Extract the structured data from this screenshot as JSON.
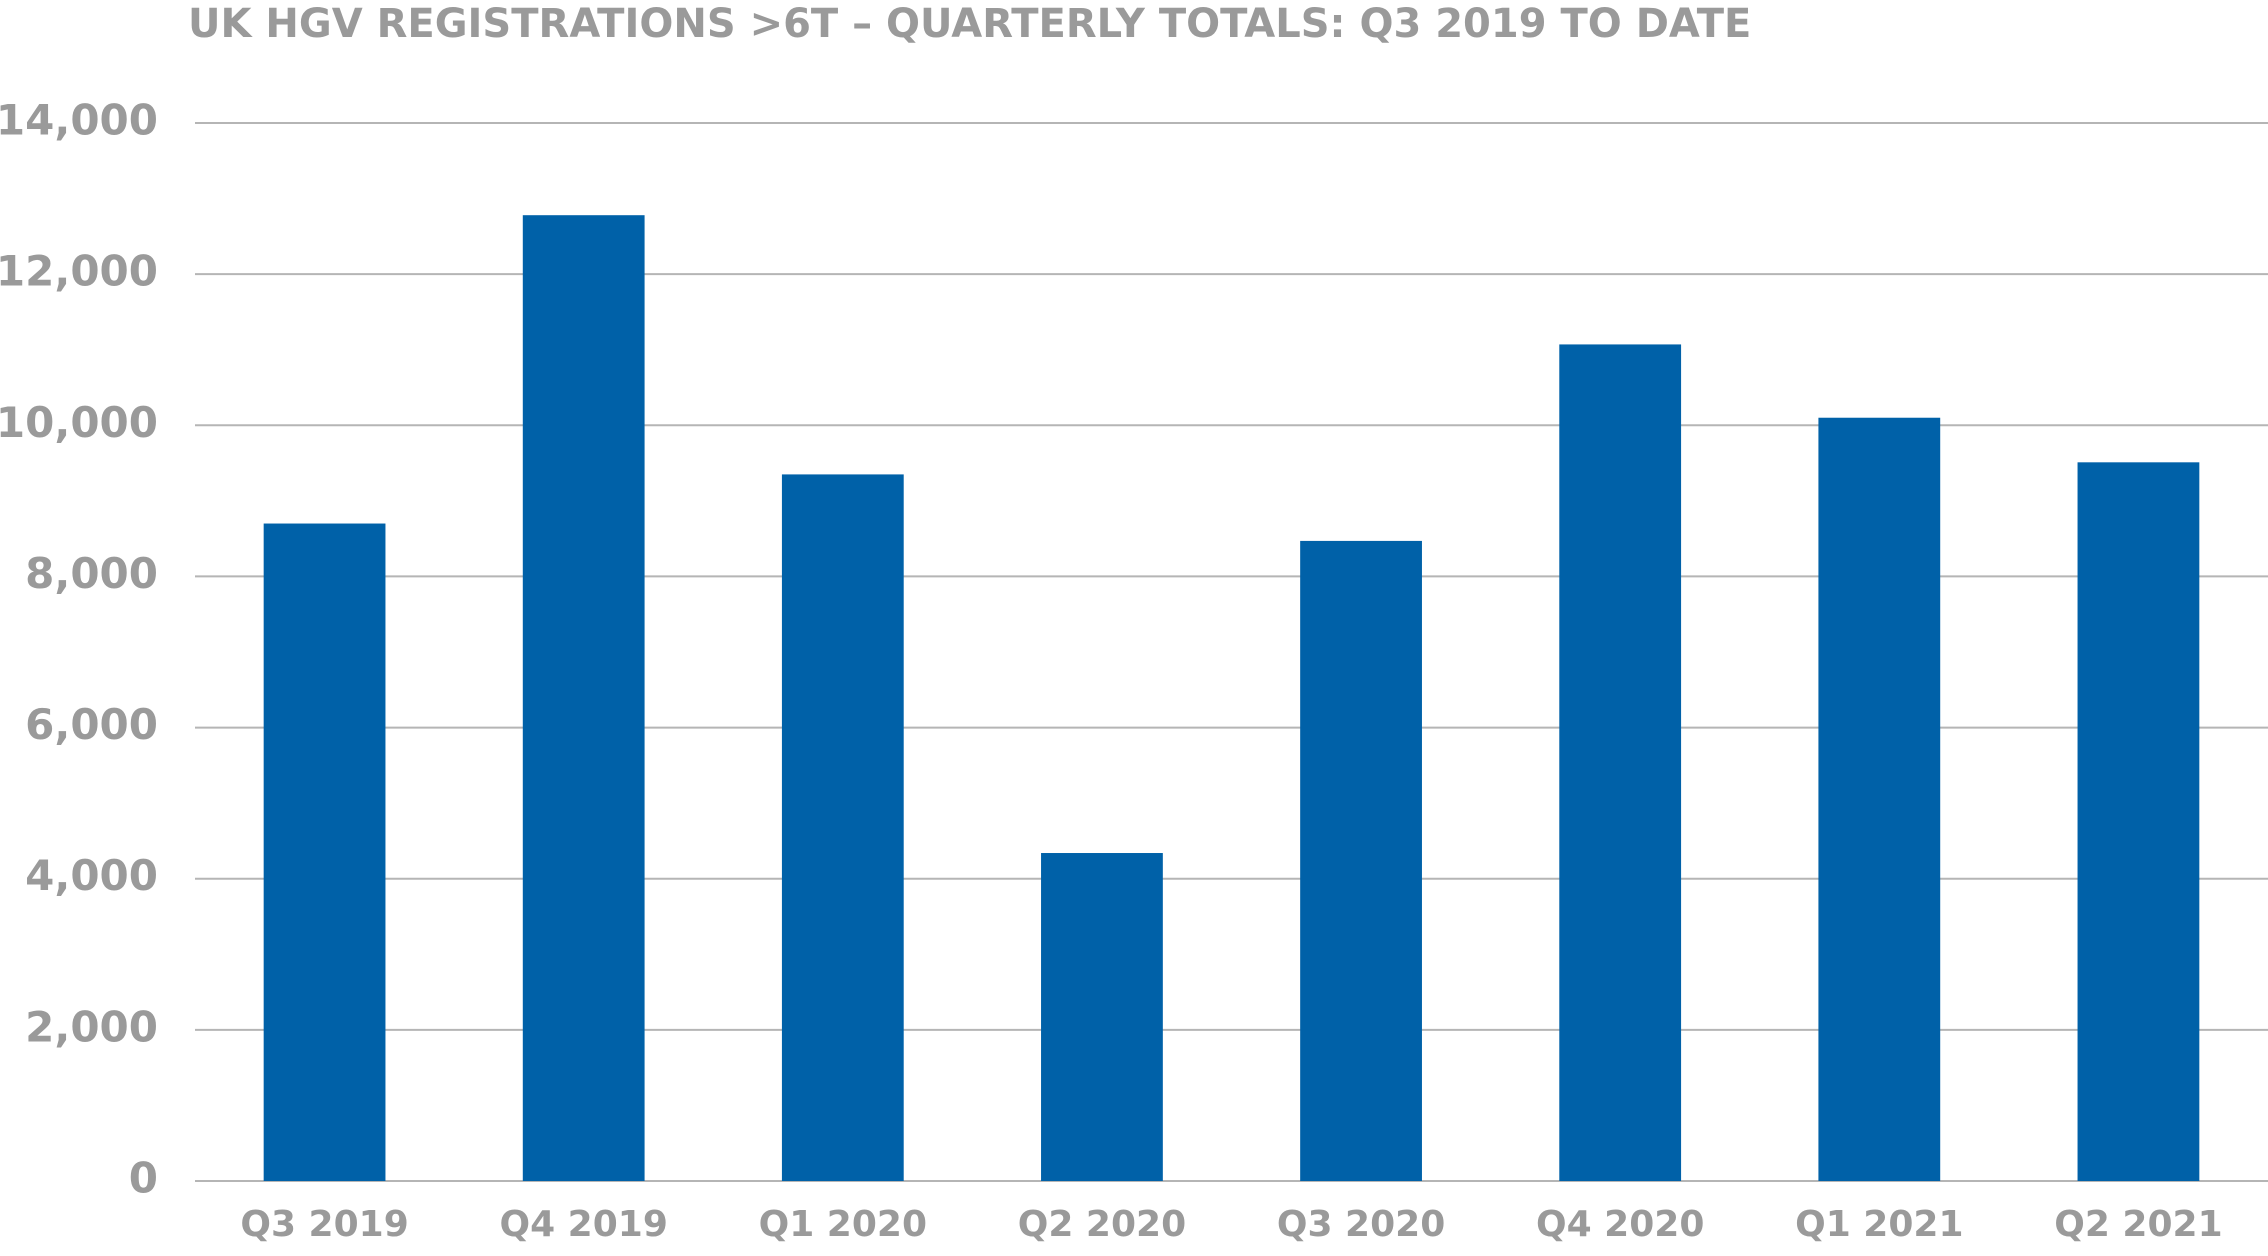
{
  "chart_data": {
    "type": "bar",
    "title": "UK HGV REGISTRATIONS >6T – QUARTERLY TOTALS: Q3 2019 TO DATE",
    "categories": [
      "Q3 2019",
      "Q4 2019",
      "Q1 2020",
      "Q2 2020",
      "Q3 2020",
      "Q4 2020",
      "Q1 2021",
      "Q2 2021"
    ],
    "values": [
      8700,
      12780,
      9350,
      4340,
      8470,
      11070,
      10100,
      9510
    ],
    "color": "#0061a8",
    "ylim": [
      0,
      14000
    ],
    "yticks": [
      0,
      {
        "value": 2000,
        "label": "2,000"
      },
      {
        "value": 4000,
        "label": "4,000"
      },
      {
        "value": 6000,
        "label": "6,000"
      },
      {
        "value": 8000,
        "label": "8,000"
      },
      {
        "value": 10000,
        "label": "10,000"
      },
      {
        "value": 12000,
        "label": "12,000"
      },
      {
        "value": 14000,
        "label": "14,000"
      }
    ],
    "grid": true
  }
}
